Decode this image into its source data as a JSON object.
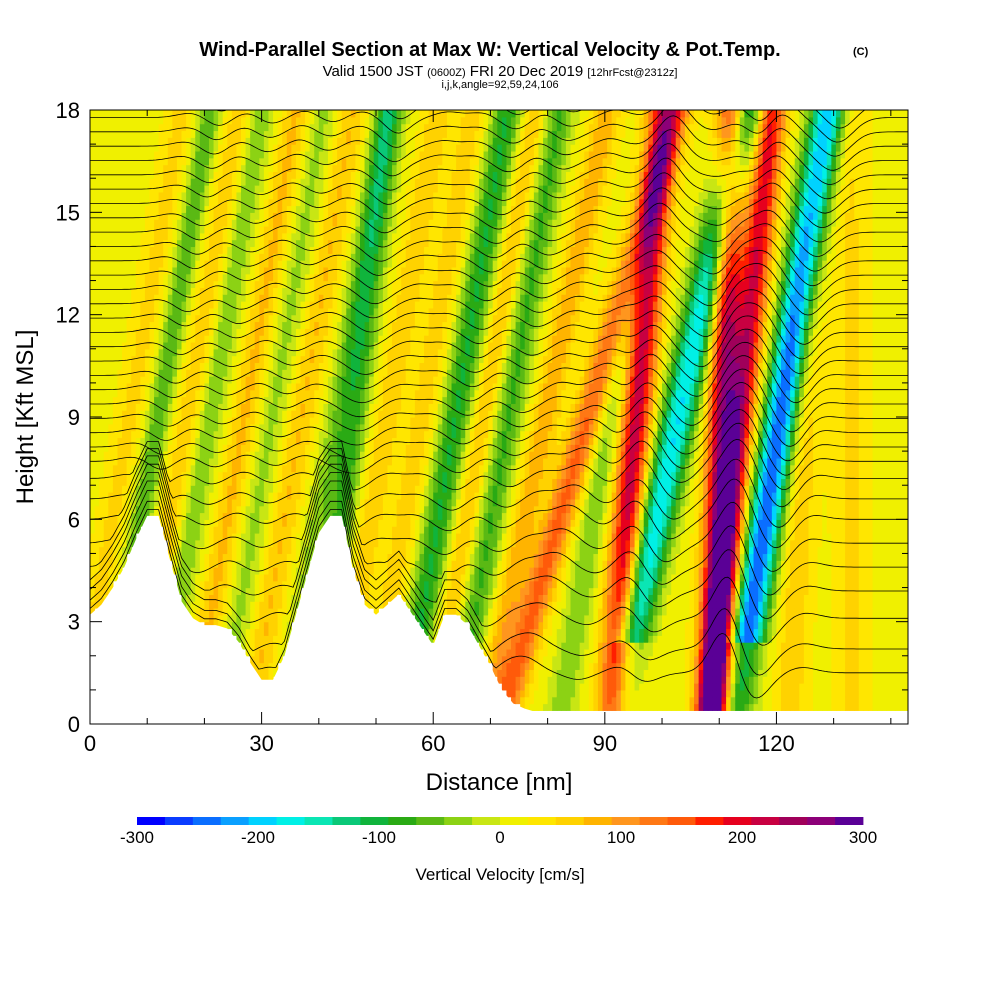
{
  "chart_data": {
    "type": "heatmap",
    "title": "Wind-Parallel Section at Max W: Vertical Velocity & Pot.Temp.",
    "title_mark": "(C)",
    "subtitle": {
      "valid": "Valid 1500 JST",
      "utc": "(0600Z)",
      "date": "FRI 20 Dec 2019",
      "fcst": "[12hrFcst@2312z]"
    },
    "indices": "i,j,k,angle=92,59,24,106",
    "xlabel": "Distance [nm]",
    "ylabel": "Height [Kft MSL]",
    "xlim": [
      0,
      143
    ],
    "ylim": [
      0,
      18
    ],
    "xticks": [
      0,
      30,
      60,
      90,
      120
    ],
    "xtick_labels": [
      "0",
      "30",
      "60",
      "90",
      "120"
    ],
    "xticks_minor": [
      10,
      20,
      40,
      50,
      70,
      80,
      100,
      110,
      130,
      140
    ],
    "yticks": [
      0,
      3,
      6,
      9,
      12,
      15,
      18
    ],
    "ytick_labels": [
      "0",
      "3",
      "6",
      "9",
      "12",
      "15",
      "18"
    ],
    "yticks_minor": [
      1,
      2,
      4,
      5,
      7,
      8,
      10,
      11,
      13,
      14,
      16,
      17
    ],
    "colorbar": {
      "label": "Vertical Velocity [cm/s]",
      "range": [
        -300,
        300
      ],
      "tick_values": [
        -300,
        -200,
        -100,
        0,
        100,
        200,
        300
      ],
      "tick_labels": [
        "-300",
        "-200",
        "-100",
        "0",
        "100",
        "200",
        "300"
      ],
      "colors": [
        "#0000ff",
        "#0a3cff",
        "#0a6eff",
        "#0aa0ff",
        "#00d2ff",
        "#00f0e6",
        "#0ae6b4",
        "#0ac878",
        "#10b43c",
        "#2aaa14",
        "#5ab914",
        "#8cd214",
        "#c8e614",
        "#f0f000",
        "#ffe600",
        "#ffd200",
        "#ffb400",
        "#ff961e",
        "#ff7814",
        "#ff5a0a",
        "#ff1e00",
        "#e6001e",
        "#c80041",
        "#a0005a",
        "#8c0078",
        "#5a0096"
      ]
    },
    "terrain_kft": {
      "x": [
        0,
        2,
        4,
        6,
        8,
        10,
        12,
        14,
        16,
        18,
        20,
        22,
        24,
        26,
        28,
        30,
        32,
        34,
        36,
        38,
        40,
        42,
        44,
        46,
        48,
        50,
        52,
        54,
        56,
        58,
        60,
        62,
        64,
        66,
        68,
        70,
        72,
        74,
        76,
        78,
        80,
        85,
        90,
        95,
        100,
        110,
        120,
        130,
        143
      ],
      "y": [
        3.2,
        3.5,
        4.0,
        4.6,
        5.4,
        6.1,
        6.1,
        4.8,
        3.6,
        3.1,
        2.9,
        2.9,
        2.8,
        2.4,
        1.8,
        1.3,
        1.3,
        2.0,
        3.2,
        4.4,
        5.6,
        6.1,
        6.1,
        4.5,
        3.5,
        3.2,
        3.5,
        3.8,
        3.3,
        2.8,
        2.3,
        3.2,
        3.2,
        2.9,
        2.3,
        1.7,
        1.0,
        0.6,
        0.45,
        0.35,
        0.35,
        0.35,
        0.35,
        0.35,
        0.35,
        0.35,
        0.35,
        0.35,
        0.35
      ]
    },
    "w_features": [
      {
        "x": 4,
        "w": 40,
        "drift": 1.0,
        "width": 2.5
      },
      {
        "x": 9,
        "w": -80,
        "drift": 1.0,
        "width": 2.2
      },
      {
        "x": 14,
        "w": 45,
        "drift": 1.0,
        "width": 2.5
      },
      {
        "x": 18,
        "w": -60,
        "drift": 1.0,
        "width": 2.2
      },
      {
        "x": 24,
        "w": 60,
        "drift": 1.0,
        "width": 2.2
      },
      {
        "x": 29,
        "w": -45,
        "drift": 1.0,
        "width": 2.2
      },
      {
        "x": 34,
        "w": 55,
        "drift": 1.0,
        "width": 2.5
      },
      {
        "x": 40,
        "w": -50,
        "drift": 1.0,
        "width": 2.2
      },
      {
        "x": 44,
        "w": -95,
        "drift": 0.7,
        "width": 2.5
      },
      {
        "x": 49,
        "w": 50,
        "drift": 1.0,
        "width": 2.5
      },
      {
        "x": 55,
        "w": 45,
        "drift": 1.0,
        "width": 2.5
      },
      {
        "x": 61,
        "w": -110,
        "drift": 1.0,
        "width": 2.7
      },
      {
        "x": 66,
        "w": 60,
        "drift": 1.0,
        "width": 2.5
      },
      {
        "x": 70,
        "w": -90,
        "drift": 1.0,
        "width": 2.7
      },
      {
        "x": 76,
        "w": 70,
        "drift": 1.2,
        "width": 2.5
      },
      {
        "x": 82,
        "w": 130,
        "drift": 1.7,
        "width": 2.7
      },
      {
        "x": 88,
        "w": -60,
        "drift": 1.0,
        "width": 2.5
      },
      {
        "x": 94,
        "w": 210,
        "drift": 0.5,
        "width": 2.7
      },
      {
        "x": 99,
        "w": -200,
        "drift": 1.3,
        "width": 3.2
      },
      {
        "x": 110,
        "w": 225,
        "drift": 0.2,
        "width": 2.7
      },
      {
        "x": 112,
        "w": 190,
        "drift": 0.6,
        "width": 2.5
      },
      {
        "x": 118,
        "w": -270,
        "drift": 0.9,
        "width": 3.0
      },
      {
        "x": 124,
        "w": 50,
        "drift": 0.3,
        "width": 2.7
      },
      {
        "x": 133,
        "w": 35,
        "drift": 0.0,
        "width": 3.0
      }
    ],
    "isentropes_kft": {
      "surface_levels": [
        1.5,
        2.2,
        3.1,
        3.9,
        4.6,
        5.3,
        6.0,
        6.6,
        7.2
      ],
      "upper_start": 7.7,
      "upper_step": 0.42,
      "upper_count": 26
    }
  }
}
